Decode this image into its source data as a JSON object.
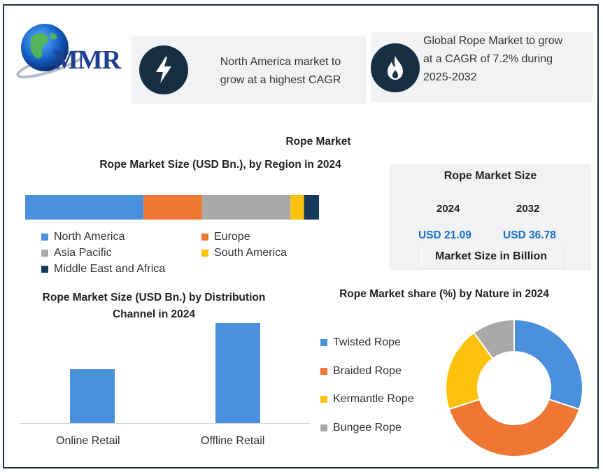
{
  "logo": {
    "text": "MMR"
  },
  "cards": [
    {
      "text_line1": "North America market to",
      "text_line2": "grow at a highest CAGR",
      "icon": "lightning-bolt-icon"
    },
    {
      "text_line1": "Global Rope Market to grow",
      "text_line2": "at a CAGR of 7.2% during",
      "text_line3": "2025-2032",
      "icon": "flame-icon"
    }
  ],
  "main_title": "Rope Market",
  "market_size": {
    "title": "Rope Market Size",
    "year1": "2024",
    "year2": "2032",
    "value1": "USD 21.09",
    "value2": "USD 36.78",
    "unit_label": "Market Size in Billion"
  },
  "chart_data": [
    {
      "type": "bar",
      "orientation": "horizontal-stacked",
      "title": "Rope Market Size (USD Bn.), by Region in 2024",
      "series": [
        {
          "name": "North America",
          "values": [
            39.5
          ],
          "color": "#4a90dc"
        },
        {
          "name": "Europe",
          "values": [
            19.5
          ],
          "color": "#ed7733"
        },
        {
          "name": "Asia Pacific",
          "values": [
            29.5
          ],
          "color": "#a9a9a9"
        },
        {
          "name": "South America",
          "values": [
            4.5
          ],
          "color": "#fcc20c"
        },
        {
          "name": "Middle East and Africa",
          "values": [
            5
          ],
          "color": "#173a5e"
        }
      ],
      "legend_position": "bottom"
    },
    {
      "type": "bar",
      "title": "Rope Market Size (USD Bn.) by Distribution Channel in 2024",
      "categories": [
        "Online Retail",
        "Offline Retail"
      ],
      "values": [
        7,
        13
      ],
      "ylim": [
        0,
        14
      ],
      "color": "#4a90dc",
      "grid": false
    },
    {
      "type": "pie",
      "subtype": "donut",
      "title": "Rope Market share (%) by Nature in 2024",
      "categories": [
        "Twisted Rope",
        "Braided Rope",
        "Kermantle Rope",
        "Bungee Rope"
      ],
      "values": [
        30,
        40,
        20,
        10
      ],
      "colors": [
        "#4a90dc",
        "#ed7733",
        "#fcc20c",
        "#a9a9a9"
      ],
      "legend_position": "left"
    }
  ]
}
